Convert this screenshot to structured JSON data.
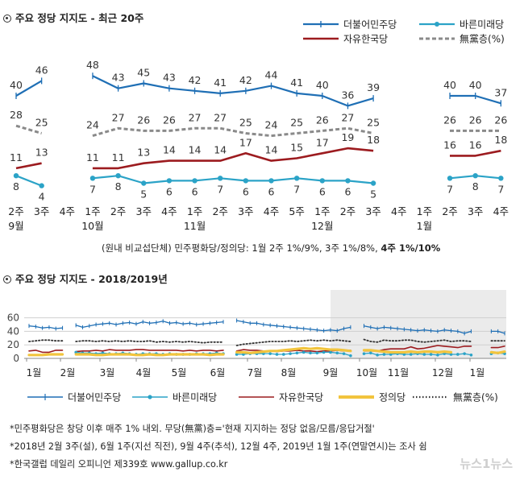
{
  "top": {
    "title": "주요 정당 지지도 - 최근 20주",
    "legend": [
      "더불어민주당",
      "바른미래당",
      "자유한국당",
      "無黨층(%)"
    ]
  },
  "bottom": {
    "title": "주요 정당 지지도 - 2018/2019년",
    "legend": [
      "더불어민주당",
      "바른미래당",
      "자유한국당",
      "정의당",
      "無黨층(%)"
    ]
  },
  "subnote": {
    "main": "(원내 비교섭단체) 민주평화당/정의당: 1월 2주 1%/9%, 3주 1%/8%, ",
    "bold": "4주 1%/10%"
  },
  "notes": [
    "*민주평화당은 창당 이후 매주 1% 내외. 무당(無黨)층='현재 지지하는 정당 없음/모름/응답거절'",
    "*2018년 2월 3주(설), 6월 1주(지선 직전), 9월 4주(추석), 12월 4주, 2019년 1월 1주(연말연시)는 조사 쉼",
    "*한국갤럽 데일리 오피니언 제339호 www.gallup.co.kr"
  ],
  "watermark": "뉴스1뉴스",
  "colors": {
    "minjoo": "#1f6fb5",
    "bareun": "#2ba3c7",
    "jayu": "#9c1b1f",
    "jeongui": "#f2c43d",
    "none": "#8a8a8a"
  },
  "chart_data": [
    {
      "type": "line",
      "title": "주요 정당 지지도 - 최근 20주",
      "x_week": [
        "2주",
        "3주",
        "4주",
        "1주",
        "2주",
        "3주",
        "4주",
        "1주",
        "2주",
        "3주",
        "4주",
        "5주",
        "1주",
        "2주",
        "3주",
        "4주",
        "1주",
        "2주",
        "3주",
        "4주"
      ],
      "x_month": [
        "9월",
        "",
        "",
        "10월",
        "",
        "",
        "",
        "11월",
        "",
        "",
        "",
        "",
        "12월",
        "",
        "",
        "",
        "1월",
        "",
        "",
        ""
      ],
      "ylim": [
        0,
        55
      ],
      "series": [
        {
          "name": "더불어민주당",
          "values": [
            40,
            46,
            null,
            48,
            43,
            45,
            43,
            42,
            41,
            42,
            44,
            41,
            40,
            36,
            39,
            null,
            null,
            40,
            40,
            37
          ]
        },
        {
          "name": "자유한국당",
          "values": [
            11,
            13,
            null,
            11,
            11,
            13,
            14,
            14,
            14,
            17,
            14,
            15,
            17,
            19,
            18,
            null,
            null,
            16,
            16,
            18
          ]
        },
        {
          "name": "無黨층(%)",
          "values": [
            28,
            25,
            null,
            24,
            27,
            26,
            26,
            27,
            27,
            25,
            24,
            25,
            26,
            27,
            25,
            null,
            null,
            26,
            26,
            26
          ]
        },
        {
          "name": "바른미래당",
          "values": [
            8,
            4,
            null,
            7,
            8,
            5,
            6,
            6,
            7,
            6,
            6,
            7,
            6,
            6,
            5,
            null,
            null,
            7,
            8,
            7
          ]
        }
      ]
    },
    {
      "type": "line",
      "title": "주요 정당 지지도 - 2018/2019년",
      "x_ticks": [
        "1월",
        "2월",
        "3월",
        "4월",
        "5월",
        "6월",
        "7월",
        "8월",
        "9월",
        "10월",
        "11월",
        "12월",
        "1월"
      ],
      "yticks": [
        0,
        20,
        40,
        60
      ],
      "ylim": [
        0,
        65
      ],
      "series": [
        {
          "name": "더불어민주당",
          "values": [
            48,
            47,
            45,
            46,
            44,
            45,
            null,
            49,
            46,
            48,
            50,
            51,
            52,
            50,
            52,
            53,
            51,
            54,
            52,
            53,
            55,
            52,
            53,
            51,
            52,
            50,
            51,
            52,
            53,
            54,
            null,
            56,
            54,
            52,
            52,
            50,
            49,
            48,
            47,
            46,
            45,
            44,
            43,
            42,
            41,
            42,
            41,
            44,
            46,
            null,
            48,
            46,
            44,
            46,
            45,
            44,
            43,
            42,
            41,
            42,
            41,
            40,
            42,
            41,
            40,
            37,
            40,
            null,
            null,
            40,
            40,
            37
          ]
        },
        {
          "name": "자유한국당",
          "values": [
            11,
            12,
            9,
            9,
            12,
            12,
            null,
            10,
            11,
            11,
            12,
            11,
            13,
            12,
            12,
            12,
            13,
            13,
            12,
            12,
            12,
            12,
            12,
            11,
            12,
            11,
            12,
            12,
            11,
            12,
            null,
            11,
            13,
            12,
            12,
            11,
            11,
            10,
            11,
            11,
            12,
            11,
            11,
            10,
            11,
            11,
            12,
            11,
            12,
            null,
            11,
            11,
            11,
            13,
            14,
            14,
            14,
            17,
            14,
            15,
            17,
            19,
            18,
            17,
            16,
            18,
            18,
            null,
            null,
            16,
            16,
            18
          ]
        },
        {
          "name": "바른미래당",
          "values": [
            null,
            null,
            null,
            null,
            null,
            null,
            null,
            9,
            8,
            8,
            7,
            8,
            7,
            7,
            8,
            7,
            6,
            7,
            7,
            7,
            6,
            7,
            6,
            6,
            6,
            7,
            7,
            7,
            8,
            7,
            null,
            6,
            6,
            7,
            7,
            7,
            7,
            6,
            6,
            7,
            8,
            9,
            8,
            8,
            9,
            9,
            8,
            7,
            4,
            null,
            7,
            8,
            5,
            6,
            6,
            7,
            6,
            6,
            7,
            6,
            6,
            5,
            7,
            6,
            6,
            7,
            5,
            null,
            null,
            7,
            8,
            7
          ]
        },
        {
          "name": "정의당",
          "values": [
            5,
            5,
            5,
            6,
            6,
            6,
            null,
            6,
            6,
            6,
            5,
            5,
            6,
            6,
            6,
            6,
            5,
            5,
            6,
            5,
            5,
            6,
            6,
            6,
            6,
            6,
            6,
            5,
            6,
            6,
            null,
            9,
            9,
            8,
            9,
            10,
            11,
            11,
            12,
            13,
            14,
            15,
            14,
            15,
            14,
            13,
            13,
            12,
            11,
            null,
            12,
            12,
            11,
            10,
            9,
            9,
            9,
            10,
            9,
            10,
            10,
            9,
            10,
            9,
            null,
            null,
            null,
            null,
            null,
            9,
            8,
            10
          ]
        },
        {
          "name": "無黨층(%)",
          "values": [
            25,
            26,
            27,
            27,
            26,
            26,
            null,
            25,
            26,
            26,
            25,
            26,
            25,
            26,
            25,
            26,
            25,
            25,
            26,
            24,
            25,
            24,
            25,
            24,
            25,
            24,
            23,
            24,
            24,
            24,
            null,
            19,
            21,
            22,
            23,
            24,
            25,
            25,
            25,
            26,
            25,
            26,
            27,
            26,
            27,
            26,
            27,
            26,
            25,
            null,
            28,
            25,
            24,
            27,
            26,
            26,
            27,
            27,
            25,
            24,
            25,
            26,
            27,
            25,
            26,
            26,
            25,
            null,
            null,
            26,
            26,
            26
          ]
        }
      ]
    }
  ]
}
